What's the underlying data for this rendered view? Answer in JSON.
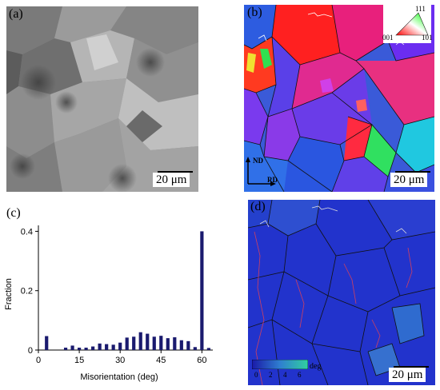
{
  "panels": {
    "a": {
      "label": "(a)",
      "scale_bar": "20 μm"
    },
    "b": {
      "label": "(b)",
      "scale_bar": "20 μm",
      "axes": {
        "nd": "ND",
        "rd": "RD"
      },
      "ipf_key": {
        "top": "111",
        "left": "001",
        "right": "101"
      }
    },
    "c": {
      "label": "(c)"
    },
    "d": {
      "label": "(d)",
      "scale_bar": "20 μm",
      "colorbar": {
        "ticks": [
          "0",
          "2",
          "4",
          "6"
        ],
        "unit": "deg"
      }
    }
  },
  "chart_data": {
    "type": "bar",
    "xlabel": "Misorientation (deg)",
    "ylabel": "Fraction",
    "xlim": [
      0,
      64
    ],
    "ylim": [
      0,
      0.42
    ],
    "xticks": [
      0,
      15,
      30,
      45,
      60
    ],
    "yticks": [
      0,
      0.2,
      0.4
    ],
    "bar_color": "#1a1a6e",
    "x": [
      3,
      7.5,
      10,
      12.5,
      15,
      17.5,
      20,
      22.5,
      25,
      27.5,
      30,
      32.5,
      35,
      37.5,
      40,
      42.5,
      45,
      47.5,
      50,
      52.5,
      55,
      57.5,
      60,
      62.5
    ],
    "values": [
      0.047,
      0.0,
      0.008,
      0.015,
      0.008,
      0.008,
      0.012,
      0.022,
      0.02,
      0.018,
      0.025,
      0.042,
      0.045,
      0.06,
      0.055,
      0.045,
      0.048,
      0.04,
      0.043,
      0.033,
      0.03,
      0.01,
      0.4,
      0.007
    ]
  }
}
